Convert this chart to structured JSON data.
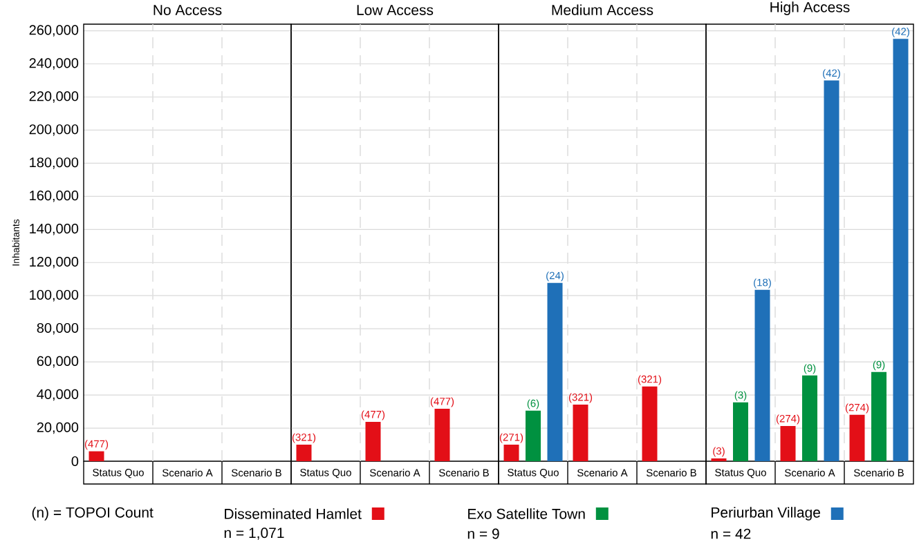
{
  "chart_data": [
    {
      "type": "bar",
      "title": "No Access",
      "ylabel": "Inhabitants",
      "categories": [
        "Status Quo",
        "Scenario A",
        "Scenario B"
      ],
      "series": [
        {
          "color": "#e30f17",
          "values": [
            6000,
            null,
            null
          ]
        },
        {
          "color": "#009140",
          "values": [
            null,
            null,
            null
          ]
        },
        {
          "color": "#1f70b8",
          "values": [
            null,
            null,
            null
          ]
        }
      ],
      "ylim": [
        0,
        264000
      ],
      "yticks": [
        {
          "value": 0,
          "label": "0"
        },
        {
          "value": 20000,
          "label": "20,000"
        },
        {
          "value": 40000,
          "label": "40,000"
        },
        {
          "value": 60000,
          "label": "60,000"
        },
        {
          "value": 80000,
          "label": "80,000"
        },
        {
          "value": 100000,
          "label": "100,000"
        },
        {
          "value": 120000,
          "label": "120,000"
        },
        {
          "value": 140000,
          "label": "140,000"
        },
        {
          "value": 160000,
          "label": "160,000"
        },
        {
          "value": 180000,
          "label": "180,000"
        },
        {
          "value": 200000,
          "label": "200,000"
        },
        {
          "value": 220000,
          "label": "220,000"
        },
        {
          "value": 240000,
          "label": "240,000"
        },
        {
          "value": 260000,
          "label": "260,000"
        }
      ],
      "grid": true,
      "annotations": [
        "(477)"
      ]
    },
    {
      "type": "bar",
      "title": "Low Access",
      "categories": [
        "Status Quo",
        "Scenario A",
        "Scenario B"
      ],
      "series": [
        {
          "color": "#e30f17",
          "values": [
            10000,
            23800,
            31700
          ]
        },
        {
          "color": "#009140",
          "values": [
            null,
            null,
            null
          ]
        },
        {
          "color": "#1f70b8",
          "values": [
            null,
            null,
            null
          ]
        }
      ],
      "ylim": [
        0,
        264000
      ],
      "yticks": [
        {
          "value": 0,
          "label": null
        },
        {
          "value": 20000,
          "label": null
        },
        {
          "value": 40000,
          "label": null
        },
        {
          "value": 60000,
          "label": null
        },
        {
          "value": 80000,
          "label": null
        },
        {
          "value": 100000,
          "label": null
        },
        {
          "value": 120000,
          "label": null
        },
        {
          "value": 140000,
          "label": null
        },
        {
          "value": 160000,
          "label": null
        },
        {
          "value": 180000,
          "label": null
        },
        {
          "value": 200000,
          "label": null
        },
        {
          "value": 220000,
          "label": null
        },
        {
          "value": 240000,
          "label": null
        },
        {
          "value": 260000,
          "label": null
        }
      ],
      "grid": true,
      "tick_labels": "x",
      "annotations": [
        "(321)",
        "(477)",
        "(477)"
      ]
    },
    {
      "type": "bar",
      "title": "Medium Access",
      "categories": [
        "Status Quo",
        "Scenario A",
        "Scenario B"
      ],
      "series": [
        {
          "color": "#e30f17",
          "values": [
            10000,
            34200,
            45100
          ]
        },
        {
          "color": "#009140",
          "values": [
            30500,
            null,
            null
          ]
        },
        {
          "color": "#1f70b8",
          "values": [
            107700,
            null,
            null
          ]
        }
      ],
      "ylim": [
        0,
        264000
      ],
      "yticks": [
        {
          "value": 0,
          "label": null
        },
        {
          "value": 20000,
          "label": null
        },
        {
          "value": 40000,
          "label": null
        },
        {
          "value": 60000,
          "label": null
        },
        {
          "value": 80000,
          "label": null
        },
        {
          "value": 100000,
          "label": null
        },
        {
          "value": 120000,
          "label": null
        },
        {
          "value": 140000,
          "label": null
        },
        {
          "value": 160000,
          "label": null
        },
        {
          "value": 180000,
          "label": null
        },
        {
          "value": 200000,
          "label": null
        },
        {
          "value": 220000,
          "label": null
        },
        {
          "value": 240000,
          "label": null
        },
        {
          "value": 260000,
          "label": null
        }
      ],
      "grid": true,
      "tick_labels": "x",
      "annotations": [
        "(271)",
        "(6)",
        "(24)",
        "(321)",
        "(321)"
      ]
    },
    {
      "type": "bar",
      "title": "High Access",
      "categories": [
        "Status Quo",
        "Scenario A",
        "Scenario B"
      ],
      "series": [
        {
          "name": "Disseminated Hamlet",
          "color": "#e30f17",
          "values": [
            1700,
            21300,
            28000
          ]
        },
        {
          "name": "Exo Satellite Town",
          "color": "#009140",
          "values": [
            35500,
            51800,
            53900
          ]
        },
        {
          "name": "Periurban Village",
          "color": "#1f70b8",
          "values": [
            103500,
            230000,
            255100
          ]
        }
      ],
      "ylim": [
        0,
        264000
      ],
      "yticks": [
        {
          "value": 0,
          "label": null
        },
        {
          "value": 20000,
          "label": null
        },
        {
          "value": 40000,
          "label": null
        },
        {
          "value": 60000,
          "label": null
        },
        {
          "value": 80000,
          "label": null
        },
        {
          "value": 100000,
          "label": null
        },
        {
          "value": 120000,
          "label": null
        },
        {
          "value": 140000,
          "label": null
        },
        {
          "value": 160000,
          "label": null
        },
        {
          "value": 180000,
          "label": null
        },
        {
          "value": 200000,
          "label": null
        },
        {
          "value": 220000,
          "label": null
        },
        {
          "value": 240000,
          "label": null
        },
        {
          "value": 260000,
          "label": null
        }
      ],
      "grid": true,
      "tick_labels": "x",
      "legend": "bottom",
      "annotations": [
        "(n) = TOPOI Count",
        "n = 1,071",
        "n = 9",
        "n = 42",
        "(3)",
        "(3)",
        "(18)",
        "(274)",
        "(9)",
        "(42)",
        "(274)",
        "(9)",
        "(42)"
      ]
    }
  ]
}
